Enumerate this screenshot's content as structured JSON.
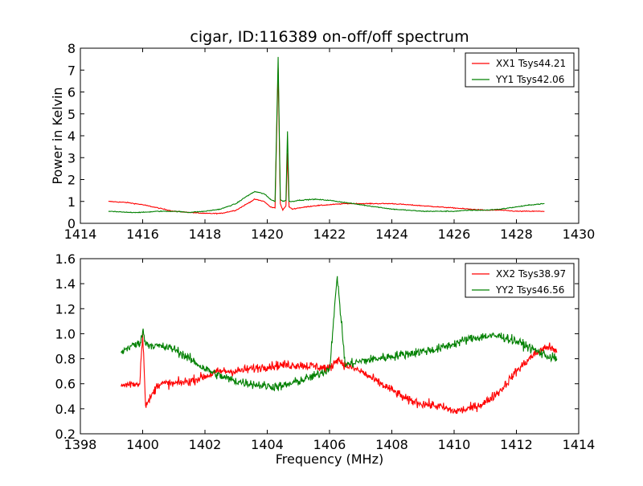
{
  "chart_data": [
    {
      "type": "line",
      "title": "cigar, ID:116389 on-off/off spectrum",
      "xlabel": "",
      "ylabel": "Power in Kelvin",
      "xlim": [
        1414,
        1430
      ],
      "ylim": [
        0,
        8
      ],
      "xticks": [
        "1414",
        "1416",
        "1418",
        "1420",
        "1422",
        "1424",
        "1426",
        "1428",
        "1430"
      ],
      "yticks": [
        "0",
        "1",
        "2",
        "3",
        "4",
        "5",
        "6",
        "7",
        "8"
      ],
      "grid": false,
      "legend_position": "top-right",
      "series": [
        {
          "name": "XX1 Tsys44.21",
          "color": "#ff0000",
          "x": [
            1414.9,
            1415.5,
            1416.0,
            1416.5,
            1417.0,
            1417.5,
            1418.0,
            1418.5,
            1419.0,
            1419.3,
            1419.6,
            1419.9,
            1420.1,
            1420.25,
            1420.35,
            1420.42,
            1420.5,
            1420.6,
            1420.65,
            1420.7,
            1420.8,
            1421.0,
            1421.5,
            1422.0,
            1422.5,
            1423.0,
            1423.5,
            1424.0,
            1424.5,
            1425.0,
            1425.5,
            1426.0,
            1426.5,
            1427.0,
            1427.5,
            1428.0,
            1428.5,
            1428.9
          ],
          "values": [
            1.0,
            0.95,
            0.85,
            0.7,
            0.55,
            0.5,
            0.45,
            0.45,
            0.6,
            0.85,
            1.1,
            1.0,
            0.75,
            0.7,
            7.1,
            0.9,
            0.6,
            0.8,
            3.2,
            0.75,
            0.65,
            0.7,
            0.8,
            0.85,
            0.9,
            0.9,
            0.9,
            0.9,
            0.85,
            0.8,
            0.75,
            0.7,
            0.65,
            0.6,
            0.6,
            0.55,
            0.55,
            0.55
          ]
        },
        {
          "name": "YY1 Tsys42.06",
          "color": "#008000",
          "x": [
            1414.9,
            1415.5,
            1416.0,
            1416.5,
            1417.0,
            1417.5,
            1418.0,
            1418.5,
            1419.0,
            1419.3,
            1419.6,
            1419.9,
            1420.1,
            1420.25,
            1420.35,
            1420.42,
            1420.5,
            1420.6,
            1420.65,
            1420.7,
            1420.8,
            1421.0,
            1421.5,
            1422.0,
            1422.5,
            1423.0,
            1423.5,
            1424.0,
            1424.5,
            1425.0,
            1425.5,
            1426.0,
            1426.5,
            1427.0,
            1427.5,
            1428.0,
            1428.5,
            1428.9
          ],
          "values": [
            0.55,
            0.5,
            0.5,
            0.55,
            0.55,
            0.5,
            0.55,
            0.65,
            0.9,
            1.2,
            1.45,
            1.35,
            1.1,
            1.0,
            7.6,
            1.1,
            1.0,
            1.05,
            4.2,
            1.0,
            1.0,
            1.05,
            1.1,
            1.05,
            0.95,
            0.85,
            0.75,
            0.65,
            0.6,
            0.55,
            0.55,
            0.55,
            0.6,
            0.6,
            0.65,
            0.75,
            0.85,
            0.9
          ]
        }
      ]
    },
    {
      "type": "line",
      "title": "",
      "xlabel": "Frequency (MHz)",
      "ylabel": "",
      "xlim": [
        1398,
        1414
      ],
      "ylim": [
        0.2,
        1.6
      ],
      "xticks": [
        "1398",
        "1400",
        "1402",
        "1404",
        "1406",
        "1408",
        "1410",
        "1412",
        "1414"
      ],
      "yticks": [
        "0.2",
        "0.4",
        "0.6",
        "0.8",
        "1.0",
        "1.2",
        "1.4",
        "1.6"
      ],
      "grid": false,
      "legend_position": "top-right",
      "series": [
        {
          "name": "XX2 Tsys38.97",
          "color": "#ff0000",
          "x": [
            1399.3,
            1399.6,
            1399.9,
            1400.0,
            1400.1,
            1400.5,
            1401.0,
            1401.5,
            1402.0,
            1402.5,
            1403.0,
            1403.5,
            1404.0,
            1404.5,
            1405.0,
            1405.5,
            1406.0,
            1406.25,
            1406.5,
            1407.0,
            1407.5,
            1408.0,
            1408.5,
            1409.0,
            1409.5,
            1410.0,
            1410.5,
            1411.0,
            1411.5,
            1412.0,
            1412.5,
            1413.0,
            1413.3
          ],
          "values": [
            0.58,
            0.6,
            0.6,
            1.0,
            0.42,
            0.6,
            0.6,
            0.62,
            0.66,
            0.7,
            0.7,
            0.72,
            0.74,
            0.75,
            0.75,
            0.74,
            0.72,
            0.8,
            0.75,
            0.7,
            0.62,
            0.55,
            0.47,
            0.44,
            0.42,
            0.38,
            0.4,
            0.45,
            0.55,
            0.7,
            0.82,
            0.9,
            0.85
          ]
        },
        {
          "name": "YY2 Tsys46.56",
          "color": "#008000",
          "x": [
            1399.3,
            1399.6,
            1399.9,
            1400.0,
            1400.1,
            1400.5,
            1401.0,
            1401.5,
            1402.0,
            1402.5,
            1403.0,
            1403.5,
            1404.0,
            1404.5,
            1405.0,
            1405.5,
            1406.0,
            1406.25,
            1406.5,
            1407.0,
            1407.5,
            1408.0,
            1408.5,
            1409.0,
            1409.5,
            1410.0,
            1410.5,
            1411.0,
            1411.5,
            1412.0,
            1412.5,
            1413.0,
            1413.3
          ],
          "values": [
            0.85,
            0.9,
            0.92,
            1.02,
            0.92,
            0.9,
            0.88,
            0.8,
            0.72,
            0.66,
            0.62,
            0.6,
            0.58,
            0.58,
            0.62,
            0.66,
            0.72,
            1.46,
            0.75,
            0.78,
            0.8,
            0.82,
            0.84,
            0.86,
            0.88,
            0.92,
            0.96,
            0.98,
            0.98,
            0.94,
            0.88,
            0.82,
            0.8
          ]
        }
      ]
    }
  ]
}
